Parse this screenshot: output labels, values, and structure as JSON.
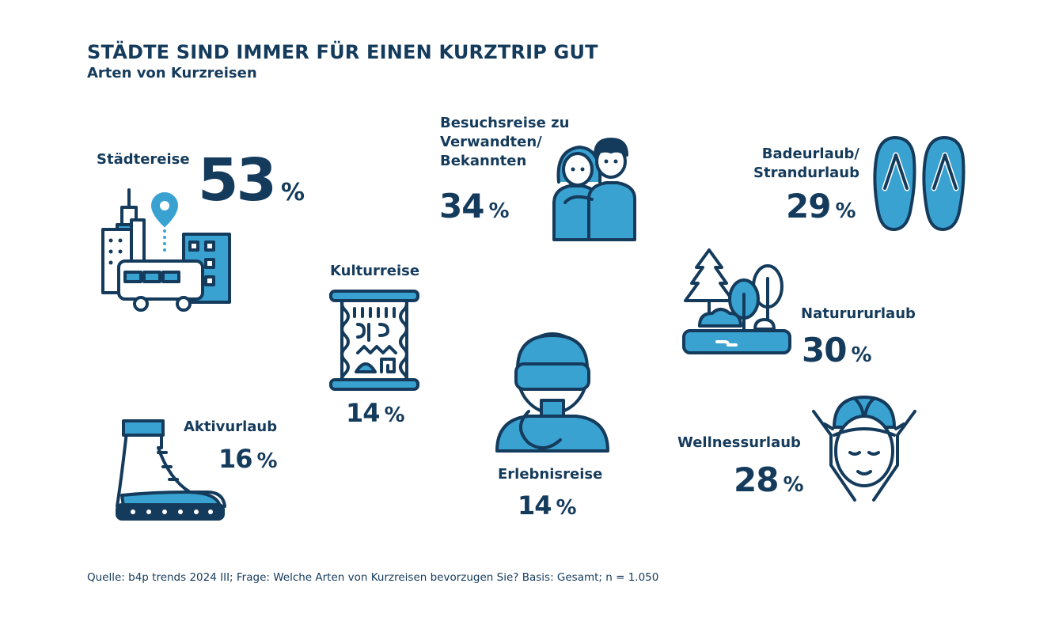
{
  "title": "STÄDTE SIND IMMER FÜR EINEN KURZTRIP GUT",
  "subtitle": "Arten von Kurzreisen",
  "chart_data": {
    "type": "infographic",
    "title": "STÄDTE SIND IMMER FÜR EINEN KURZTRIP GUT",
    "subtitle": "Arten von Kurzreisen",
    "unit": "%",
    "items": [
      {
        "label_lines": [
          "Städtereise"
        ],
        "value": 53,
        "icon": "city-icon"
      },
      {
        "label_lines": [
          "Besuchsreise zu",
          "Verwandten/",
          "Bekannten"
        ],
        "value": 34,
        "icon": "couple-icon"
      },
      {
        "label_lines": [
          "Badeurlaub/",
          "Strandurlaub"
        ],
        "value": 29,
        "icon": "flip-flops-icon"
      },
      {
        "label_lines": [
          "Kulturreise"
        ],
        "value": 14,
        "icon": "scroll-icon"
      },
      {
        "label_lines": [
          "Naturururlaub"
        ],
        "value": 30,
        "icon": "nature-icon"
      },
      {
        "label_lines": [
          "Aktivurlaub"
        ],
        "value": 16,
        "icon": "hiking-boot-icon"
      },
      {
        "label_lines": [
          "Erlebnisreise"
        ],
        "value": 14,
        "icon": "diver-icon"
      },
      {
        "label_lines": [
          "Wellnessurlaub"
        ],
        "value": 28,
        "icon": "wellness-face-icon"
      }
    ],
    "colors": {
      "dark": "#153b5c",
      "accent": "#3aa2d1"
    }
  },
  "source": "Quelle: b4p trends 2024 III; Frage: Welche Arten von Kurzreisen bevorzugen Sie? Basis: Gesamt; n = 1.050"
}
